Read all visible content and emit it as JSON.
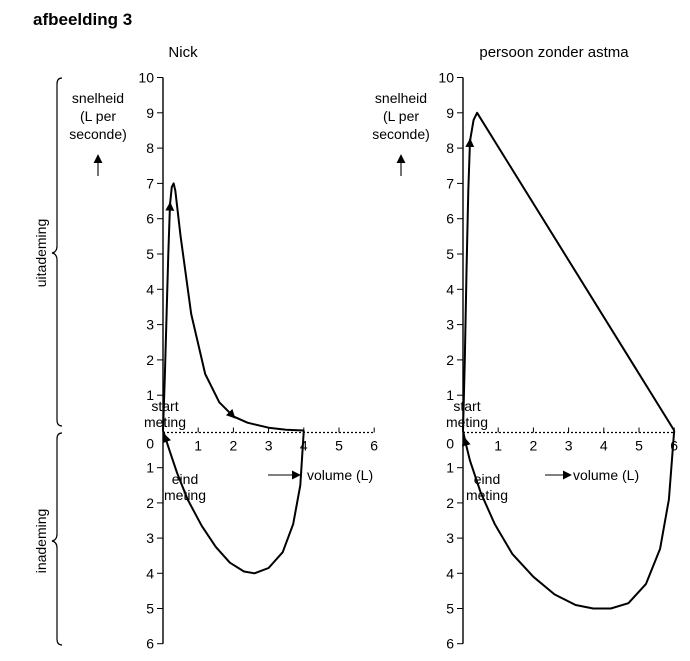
{
  "figure_title": "afbeelding 3",
  "side_labels": {
    "upper": "uitademing",
    "lower": "inademing"
  },
  "chart_data": [
    {
      "type": "line",
      "title": "Nick",
      "ylabel_lines": [
        "snelheid",
        "(L per",
        "seconde)"
      ],
      "xlabel": "volume (L)",
      "y_up_ticks": [
        "1",
        "2",
        "3",
        "4",
        "5",
        "6",
        "7",
        "8",
        "9",
        "10"
      ],
      "y_down_ticks": [
        "0",
        "1",
        "2",
        "3",
        "4",
        "5",
        "6"
      ],
      "x_ticks": [
        "1",
        "2",
        "3",
        "4",
        "5",
        "6"
      ],
      "ylim_up": [
        0,
        10
      ],
      "ylim_down": [
        0,
        6
      ],
      "xlim": [
        0,
        6
      ],
      "annotations": {
        "start": [
          "start",
          "meting"
        ],
        "end": [
          "eind",
          "meting"
        ]
      },
      "series": [
        {
          "x": [
            0.0,
            0.05,
            0.1,
            0.15,
            0.2,
            0.25,
            0.3,
            0.35,
            0.5,
            0.8,
            1.2,
            1.6,
            2.0,
            2.4,
            3.0,
            3.5,
            4.0
          ],
          "y": [
            0.0,
            1.5,
            3.2,
            5.0,
            6.4,
            6.9,
            7.0,
            6.8,
            5.5,
            3.3,
            1.6,
            0.8,
            0.4,
            0.22,
            0.08,
            0.02,
            0.0
          ]
        },
        {
          "x": [
            4.0,
            3.9,
            3.7,
            3.4,
            3.0,
            2.6,
            2.3,
            1.9,
            1.5,
            1.1,
            0.7,
            0.4,
            0.2,
            0.05,
            0.0
          ],
          "y": [
            0.0,
            -1.5,
            -2.6,
            -3.4,
            -3.85,
            -4.0,
            -3.95,
            -3.7,
            -3.25,
            -2.65,
            -1.9,
            -1.15,
            -0.55,
            -0.1,
            0.0
          ]
        }
      ]
    },
    {
      "type": "line",
      "title": "persoon zonder astma",
      "ylabel_lines": [
        "snelheid",
        "(L per",
        "seconde)"
      ],
      "xlabel": "volume (L)",
      "y_up_ticks": [
        "1",
        "2",
        "3",
        "4",
        "5",
        "6",
        "7",
        "8",
        "9",
        "10"
      ],
      "y_down_ticks": [
        "0",
        "1",
        "2",
        "3",
        "4",
        "5",
        "6"
      ],
      "x_ticks": [
        "1",
        "2",
        "3",
        "4",
        "5",
        "6"
      ],
      "ylim_up": [
        0,
        10
      ],
      "ylim_down": [
        0,
        6
      ],
      "xlim": [
        0,
        6
      ],
      "annotations": {
        "start": [
          "start",
          "meting"
        ],
        "end": [
          "eind",
          "meting"
        ]
      },
      "series": [
        {
          "x": [
            0.0,
            0.05,
            0.1,
            0.15,
            0.2,
            0.3,
            0.4,
            6.0
          ],
          "y": [
            0.0,
            2.0,
            4.5,
            6.8,
            8.2,
            8.8,
            9.0,
            0.0
          ]
        },
        {
          "x": [
            6.0,
            5.85,
            5.6,
            5.2,
            4.7,
            4.2,
            3.7,
            3.2,
            2.6,
            2.0,
            1.4,
            0.9,
            0.5,
            0.2,
            0.05,
            0.0
          ],
          "y": [
            0.0,
            -1.9,
            -3.3,
            -4.3,
            -4.85,
            -5.0,
            -5.0,
            -4.9,
            -4.6,
            -4.1,
            -3.45,
            -2.6,
            -1.7,
            -0.8,
            -0.2,
            0.0
          ]
        }
      ]
    }
  ]
}
